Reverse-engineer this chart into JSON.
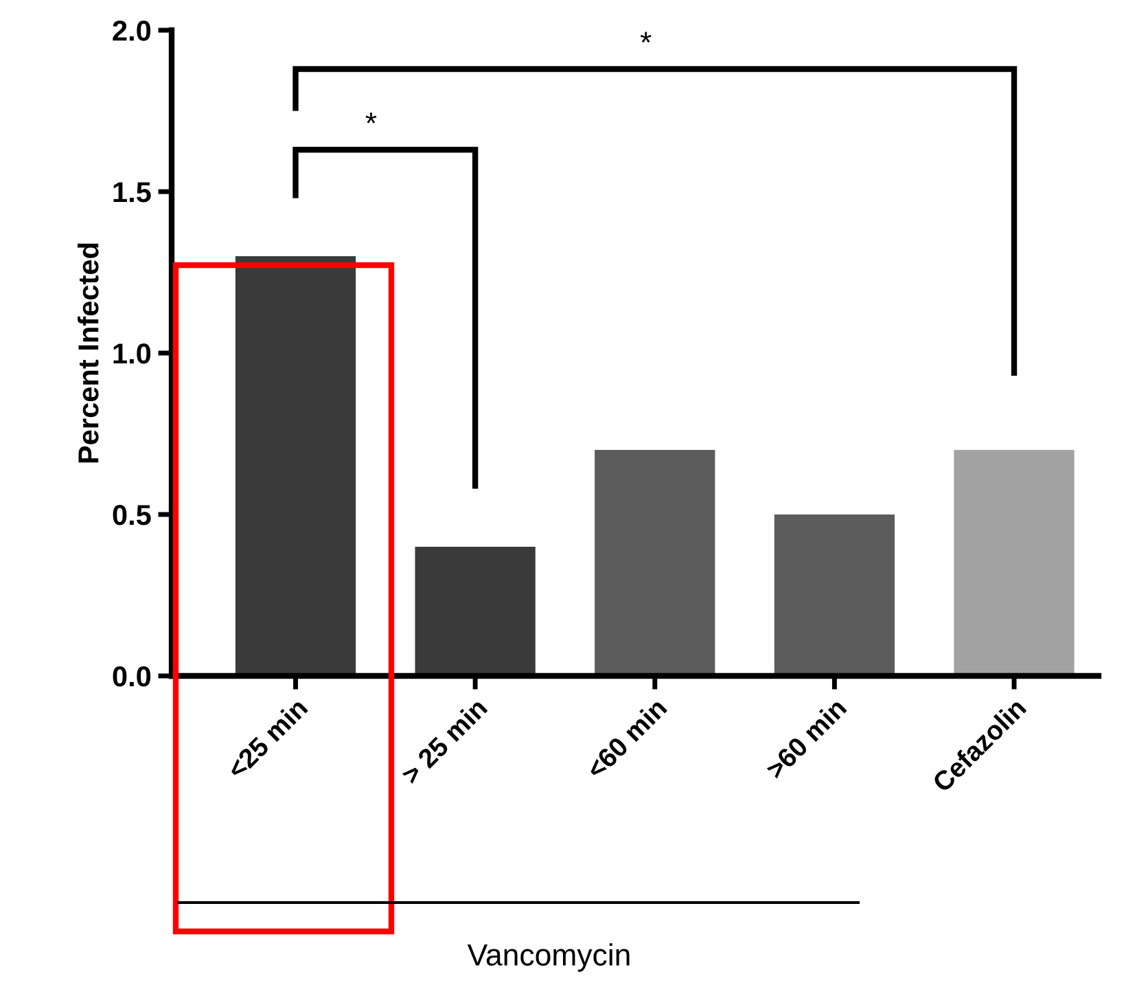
{
  "chart_data": {
    "type": "bar",
    "ylabel": "Percent Infected",
    "categories": [
      "<25 min",
      "> 25 min",
      "<60 min",
      ">60 min",
      "Cefazolin"
    ],
    "values": [
      1.3,
      0.4,
      0.7,
      0.5,
      0.7
    ],
    "colors": [
      "#3a3a3a",
      "#3a3a3a",
      "#5c5c5c",
      "#5c5c5c",
      "#a3a3a3"
    ],
    "ylim": [
      0,
      2
    ],
    "yticks": [
      {
        "value": 0,
        "label": "0.0"
      },
      {
        "value": 0.5,
        "label": "0.5"
      },
      {
        "value": 1,
        "label": "1.0"
      },
      {
        "value": 1.5,
        "label": "1.5"
      },
      {
        "value": 2,
        "label": "2.0"
      }
    ],
    "grid": false,
    "annotations": [
      "*",
      "*",
      "Vancomycin"
    ]
  }
}
